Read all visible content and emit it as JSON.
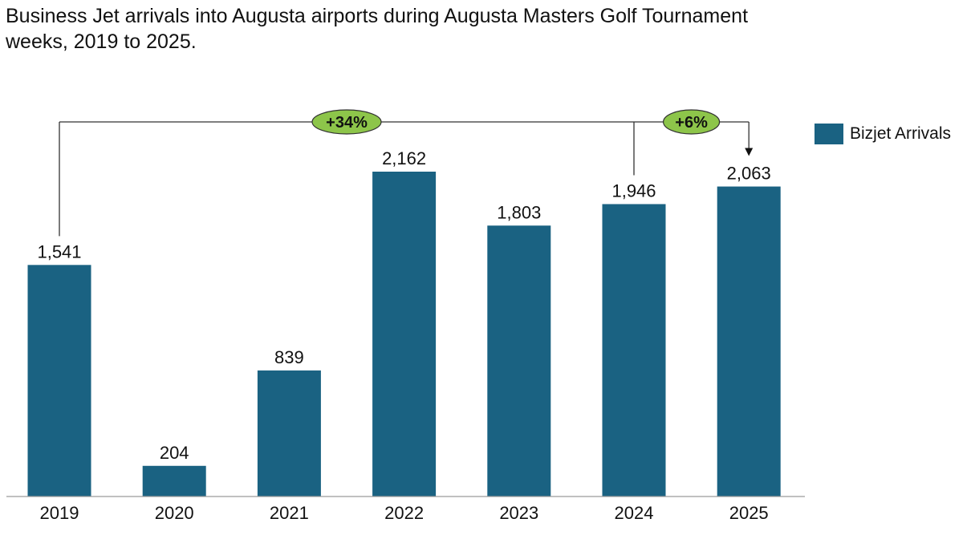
{
  "chart_data": {
    "type": "bar",
    "title_lines": [
      "Business Jet arrivals into Augusta airports during Augusta Masters Golf Tournament",
      "weeks, 2019 to 2025."
    ],
    "categories": [
      "2019",
      "2020",
      "2021",
      "2022",
      "2023",
      "2024",
      "2025"
    ],
    "series": [
      {
        "name": "Bizjet Arrivals",
        "values": [
          1541,
          204,
          839,
          2162,
          1803,
          1946,
          2063
        ],
        "value_labels": [
          "1,541",
          "204",
          "839",
          "2,162",
          "1,803",
          "1,946",
          "2,063"
        ],
        "color": "#1a6282"
      }
    ],
    "ylim": [
      0,
      2162
    ],
    "grid": false,
    "legend": {
      "placement": "top-right",
      "label": "Bizjet Arrivals"
    },
    "annotations": [
      {
        "label": "+34%",
        "from": "2019",
        "to": "2025"
      },
      {
        "label": "+6%",
        "from": "2024",
        "to": "2025"
      }
    ],
    "annotation_fill": "#8dc54a"
  }
}
